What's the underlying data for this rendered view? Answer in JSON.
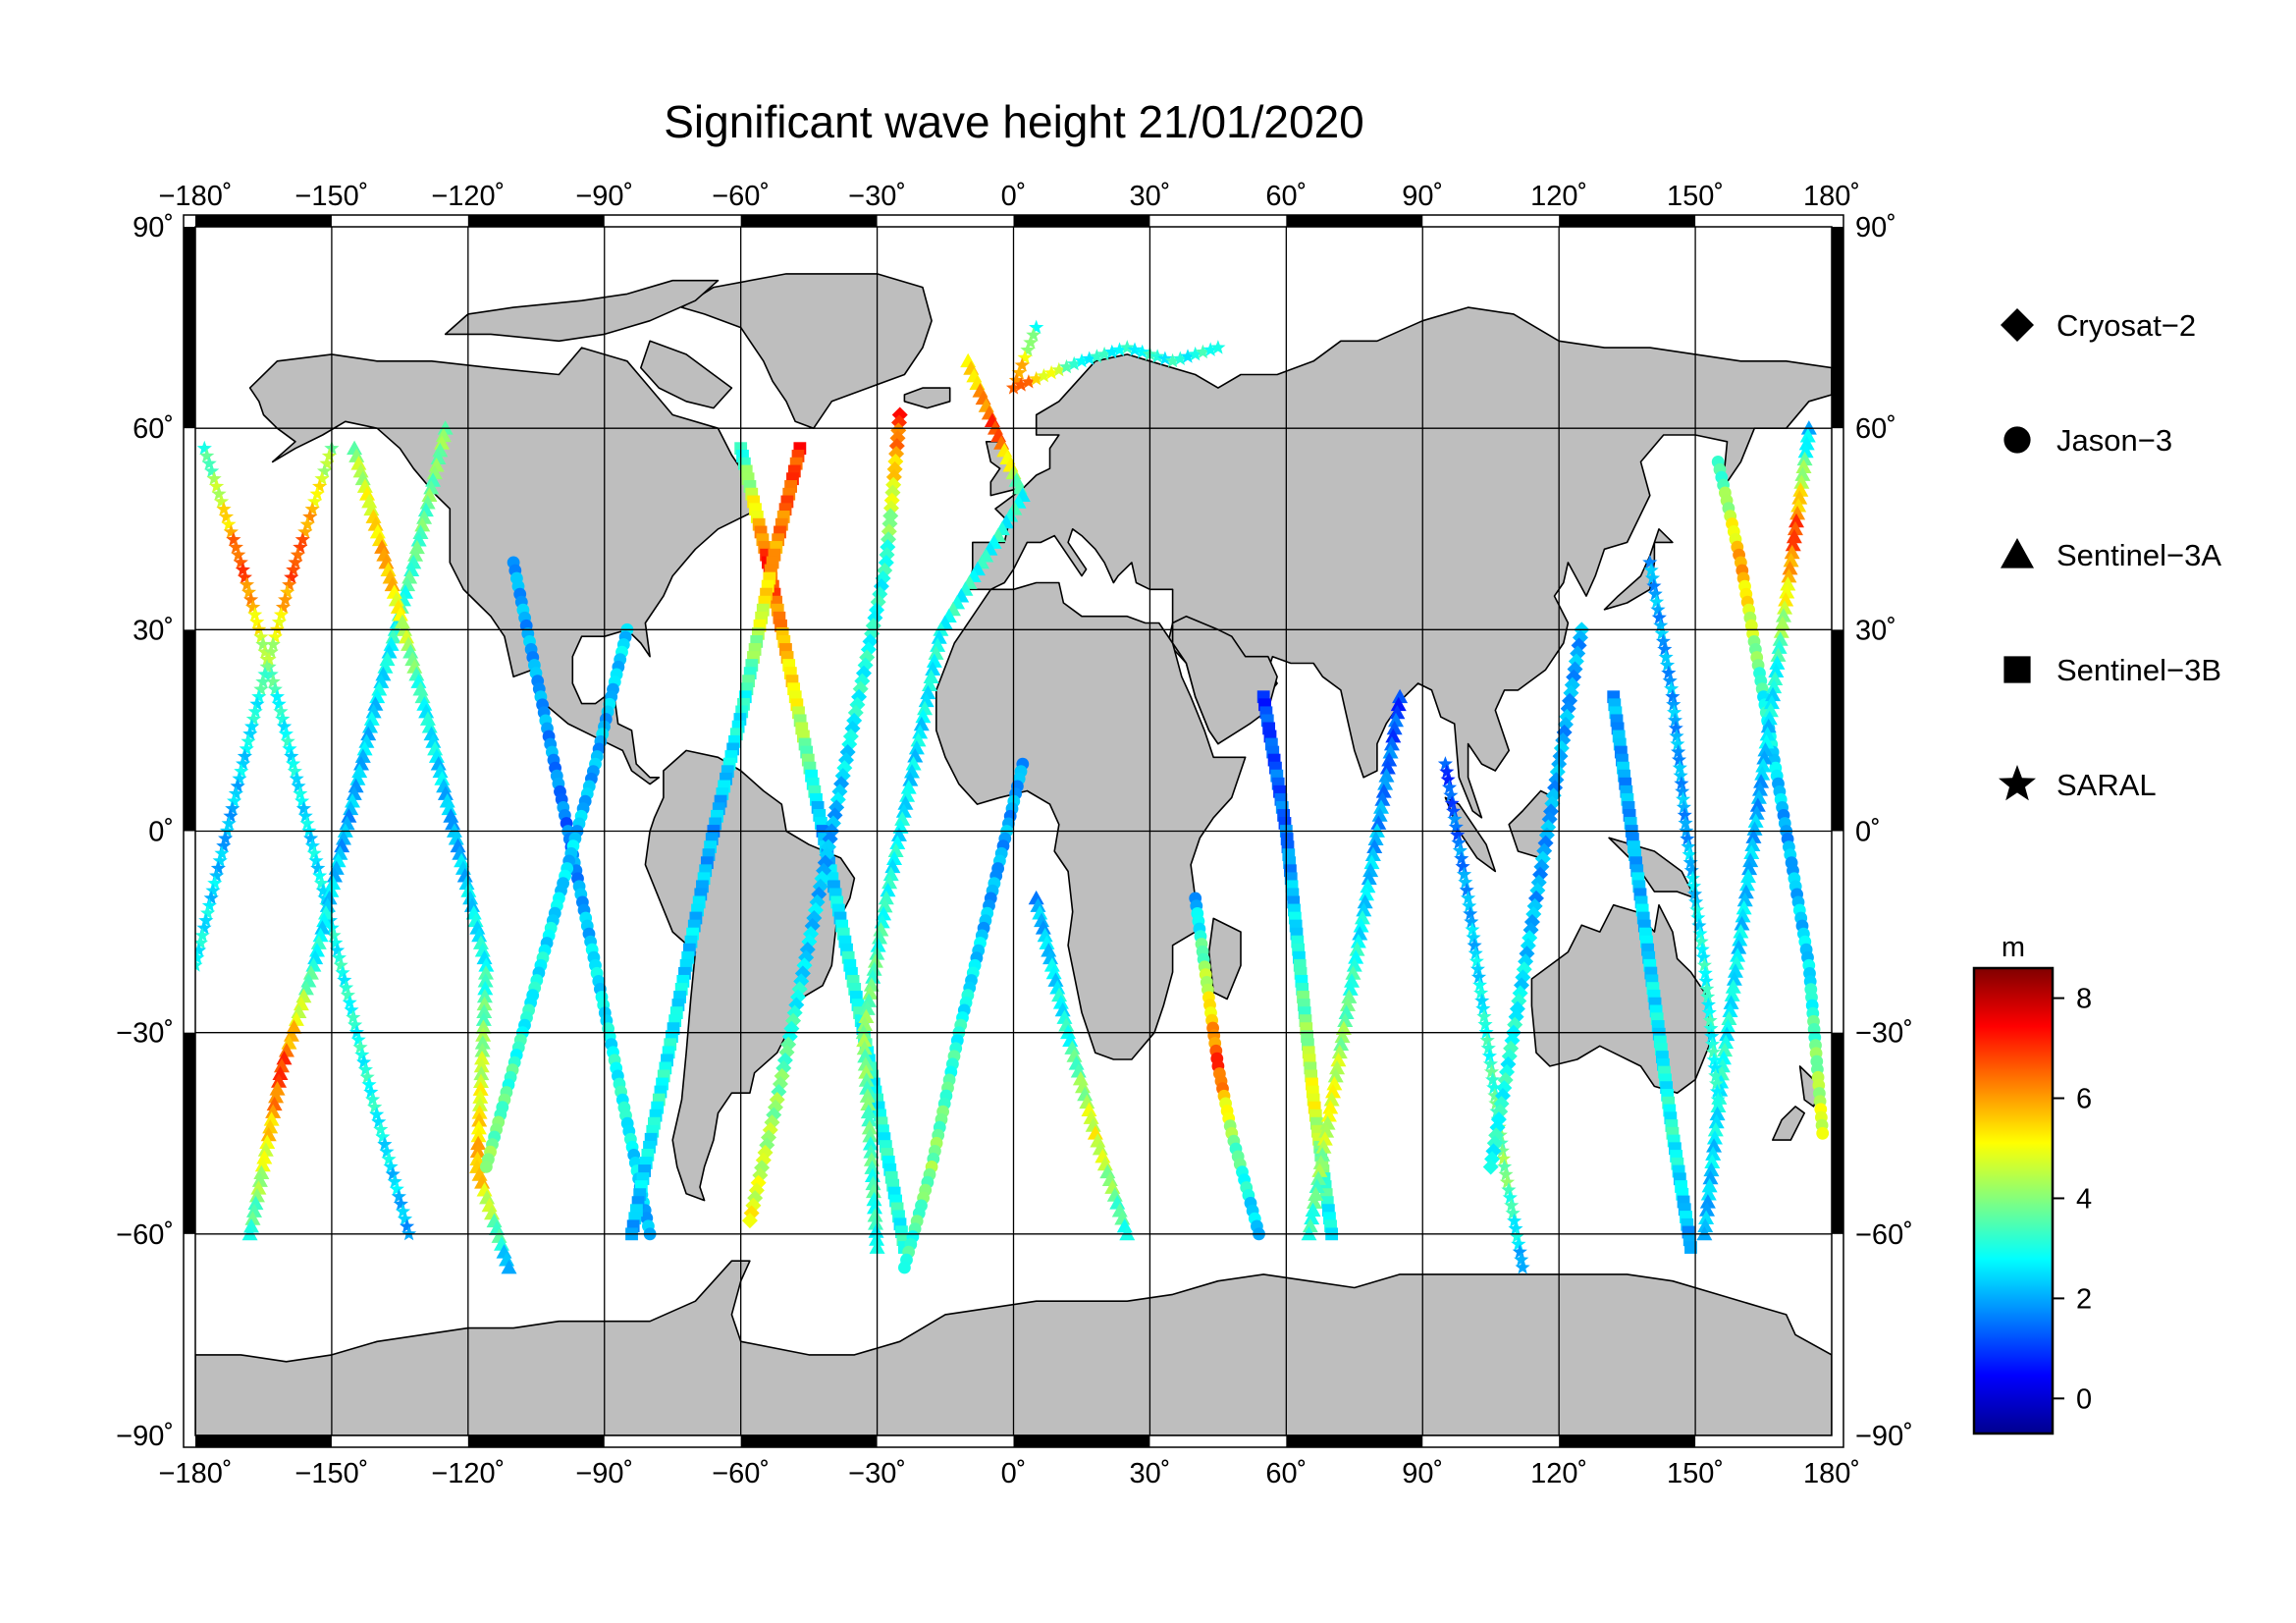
{
  "title": "Significant wave height 21/01/2020",
  "map": {
    "projection": "equirectangular",
    "lon_range": [
      -180,
      180
    ],
    "lat_range": [
      -90,
      90
    ],
    "x_ticks": [
      "−180˚",
      "−150˚",
      "−120˚",
      "−90˚",
      "−60˚",
      "−30˚",
      "0˚",
      "30˚",
      "60˚",
      "90˚",
      "120˚",
      "150˚",
      "180˚"
    ],
    "y_ticks_left": [
      "90˚",
      "60˚",
      "30˚",
      "0˚",
      "−30˚",
      "−60˚",
      "−90˚"
    ],
    "y_ticks_right": [
      "90˚",
      "60˚",
      "30˚",
      "0˚",
      "−30˚",
      "−60˚",
      "−90˚"
    ],
    "gridlines": true,
    "grid_step_deg": 30,
    "land_color": "#bebebe",
    "ocean_color": "#ffffff",
    "frame_style": "alternating black/white border"
  },
  "legend": {
    "placement": "right",
    "items": [
      {
        "label": "Cryosat−2",
        "marker": "diamond"
      },
      {
        "label": "Jason−3",
        "marker": "circle"
      },
      {
        "label": "Sentinel−3A",
        "marker": "triangle"
      },
      {
        "label": "Sentinel−3B",
        "marker": "square"
      },
      {
        "label": "SARAL",
        "marker": "star"
      }
    ]
  },
  "colorbar": {
    "unit": "m",
    "range": [
      -0.7,
      8.6
    ],
    "ticks": [
      "0",
      "2",
      "4",
      "6",
      "8"
    ],
    "tick_values": [
      0,
      2,
      4,
      6,
      8
    ],
    "colormap": "jet",
    "stops": [
      "#00008f",
      "#0000ff",
      "#0080ff",
      "#00ffff",
      "#80ff80",
      "#ffff00",
      "#ff8000",
      "#ff0000",
      "#800000"
    ]
  },
  "chart_data": {
    "type": "scatter",
    "title": "Significant wave height 21/01/2020",
    "x_axis": "longitude",
    "y_axis": "latitude",
    "value": "significant wave height (m)",
    "tracks": [
      {
        "satellite": "SARAL",
        "marker": "star",
        "points": [
          [
            -178,
            57,
            3
          ],
          [
            -170,
            40,
            7
          ],
          [
            -162,
            20,
            3
          ],
          [
            -155,
            0,
            2.5
          ],
          [
            -148,
            -20,
            3
          ],
          [
            -141,
            -40,
            3
          ],
          [
            -133,
            -60,
            2
          ]
        ]
      },
      {
        "satellite": "SARAL",
        "marker": "star",
        "points": [
          [
            -150,
            57,
            4
          ],
          [
            -158,
            40,
            7
          ],
          [
            -166,
            20,
            3
          ],
          [
            -173,
            0,
            2
          ],
          [
            -180,
            -20,
            3
          ]
        ]
      },
      {
        "satellite": "Sentinel-3A",
        "marker": "triangle",
        "points": [
          [
            -125,
            60,
            4
          ],
          [
            -132,
            40,
            3.5
          ],
          [
            -140,
            20,
            2.5
          ],
          [
            -147,
            0,
            2
          ],
          [
            -154,
            -20,
            3
          ],
          [
            -161,
            -35,
            7
          ],
          [
            -168,
            -60,
            3
          ]
        ]
      },
      {
        "satellite": "Sentinel-3A",
        "marker": "triangle",
        "points": [
          [
            -145,
            57,
            4
          ],
          [
            -138,
            40,
            6
          ],
          [
            -130,
            20,
            3
          ],
          [
            -123,
            0,
            2
          ],
          [
            -116,
            -20,
            3
          ],
          [
            -118,
            -50,
            6
          ],
          [
            -111,
            -65,
            2
          ]
        ]
      },
      {
        "satellite": "Jason-3",
        "marker": "circle",
        "points": [
          [
            -110,
            40,
            2
          ],
          [
            -104,
            20,
            2
          ],
          [
            -98,
            0,
            1.5
          ],
          [
            -92,
            -20,
            2.5
          ],
          [
            -86,
            -40,
            3
          ],
          [
            -80,
            -60,
            2
          ]
        ]
      },
      {
        "satellite": "Jason-3",
        "marker": "circle",
        "points": [
          [
            -85,
            30,
            2.5
          ],
          [
            -92,
            10,
            2
          ],
          [
            -100,
            -10,
            2.5
          ],
          [
            -108,
            -30,
            3
          ],
          [
            -116,
            -50,
            4
          ]
        ]
      },
      {
        "satellite": "Sentinel-3B",
        "marker": "square",
        "points": [
          [
            -60,
            57,
            3
          ],
          [
            -54,
            40,
            7
          ],
          [
            -48,
            20,
            5
          ],
          [
            -42,
            0,
            2
          ],
          [
            -36,
            -20,
            3
          ],
          [
            -30,
            -40,
            3
          ],
          [
            -24,
            -62,
            3
          ]
        ]
      },
      {
        "satellite": "Sentinel-3B",
        "marker": "square",
        "points": [
          [
            -47,
            57,
            7
          ],
          [
            -53,
            40,
            6
          ],
          [
            -59,
            20,
            3
          ],
          [
            -66,
            0,
            2
          ],
          [
            -72,
            -20,
            2.5
          ],
          [
            -78,
            -40,
            3
          ],
          [
            -84,
            -60,
            2
          ]
        ]
      },
      {
        "satellite": "Cryosat-2",
        "marker": "diamond",
        "points": [
          [
            -25,
            62,
            7
          ],
          [
            -28,
            40,
            3
          ],
          [
            -34,
            20,
            3
          ],
          [
            -40,
            0,
            2
          ],
          [
            -46,
            -20,
            2.5
          ],
          [
            -52,
            -40,
            4
          ],
          [
            -58,
            -58,
            5
          ]
        ]
      },
      {
        "satellite": "Sentinel-3A",
        "marker": "triangle",
        "points": [
          [
            -10,
            70,
            5
          ],
          [
            -4,
            60,
            7
          ],
          [
            2,
            50,
            3
          ],
          [
            -16,
            30,
            3
          ],
          [
            -22,
            10,
            2.5
          ],
          [
            -28,
            -10,
            3
          ],
          [
            -33,
            -30,
            4
          ],
          [
            -30,
            -62,
            3
          ]
        ]
      },
      {
        "satellite": "SARAL",
        "marker": "star",
        "points": [
          [
            5,
            75,
            3
          ],
          [
            0,
            66,
            7
          ],
          [
            15,
            70,
            3
          ],
          [
            25,
            72,
            3
          ],
          [
            35,
            70,
            3
          ],
          [
            45,
            72,
            3
          ]
        ]
      },
      {
        "satellite": "Jason-3",
        "marker": "circle",
        "points": [
          [
            2,
            10,
            2
          ],
          [
            -5,
            -10,
            2
          ],
          [
            -12,
            -30,
            3
          ],
          [
            -18,
            -50,
            4
          ],
          [
            -24,
            -65,
            3
          ]
        ]
      },
      {
        "satellite": "Sentinel-3A",
        "marker": "triangle",
        "points": [
          [
            5,
            -10,
            2
          ],
          [
            12,
            -30,
            3
          ],
          [
            18,
            -45,
            5
          ],
          [
            25,
            -60,
            3
          ]
        ]
      },
      {
        "satellite": "Jason-3",
        "marker": "circle",
        "points": [
          [
            40,
            -10,
            2
          ],
          [
            45,
            -35,
            7
          ],
          [
            48,
            -45,
            4
          ],
          [
            54,
            -60,
            2
          ]
        ]
      },
      {
        "satellite": "Sentinel-3B",
        "marker": "square",
        "points": [
          [
            55,
            20,
            1
          ],
          [
            60,
            0,
            1.5
          ],
          [
            63,
            -20,
            3
          ],
          [
            66,
            -40,
            5
          ],
          [
            70,
            -60,
            2.5
          ]
        ]
      },
      {
        "satellite": "Sentinel-3A",
        "marker": "triangle",
        "points": [
          [
            85,
            20,
            1
          ],
          [
            80,
            0,
            2
          ],
          [
            75,
            -20,
            3
          ],
          [
            70,
            -40,
            5
          ],
          [
            65,
            -60,
            3
          ]
        ]
      },
      {
        "satellite": "SARAL",
        "marker": "star",
        "points": [
          [
            95,
            10,
            1
          ],
          [
            100,
            -10,
            2
          ],
          [
            104,
            -30,
            3
          ],
          [
            108,
            -50,
            4
          ],
          [
            112,
            -65,
            2
          ]
        ]
      },
      {
        "satellite": "Cryosat-2",
        "marker": "diamond",
        "points": [
          [
            125,
            30,
            2
          ],
          [
            120,
            10,
            2
          ],
          [
            115,
            -10,
            2
          ],
          [
            110,
            -30,
            3
          ],
          [
            105,
            -50,
            3
          ]
        ]
      },
      {
        "satellite": "Jason-3",
        "marker": "circle",
        "points": [
          [
            155,
            55,
            3
          ],
          [
            160,
            40,
            6
          ],
          [
            165,
            20,
            3
          ],
          [
            170,
            0,
            2
          ],
          [
            175,
            -20,
            2.5
          ],
          [
            178,
            -45,
            5
          ]
        ]
      },
      {
        "satellite": "Sentinel-3A",
        "marker": "triangle",
        "points": [
          [
            175,
            60,
            2
          ],
          [
            172,
            45,
            7
          ],
          [
            168,
            25,
            3
          ],
          [
            164,
            5,
            2
          ],
          [
            160,
            -15,
            2.5
          ],
          [
            156,
            -35,
            3
          ],
          [
            152,
            -60,
            2
          ]
        ]
      },
      {
        "satellite": "SARAL",
        "marker": "star",
        "points": [
          [
            140,
            40,
            2
          ],
          [
            145,
            20,
            2
          ],
          [
            148,
            0,
            2
          ],
          [
            152,
            -20,
            3
          ],
          [
            155,
            -40,
            3
          ]
        ]
      },
      {
        "satellite": "Sentinel-3B",
        "marker": "square",
        "points": [
          [
            132,
            20,
            2
          ],
          [
            136,
            0,
            2
          ],
          [
            140,
            -20,
            2.5
          ],
          [
            145,
            -45,
            3
          ],
          [
            149,
            -62,
            2
          ]
        ]
      }
    ]
  }
}
